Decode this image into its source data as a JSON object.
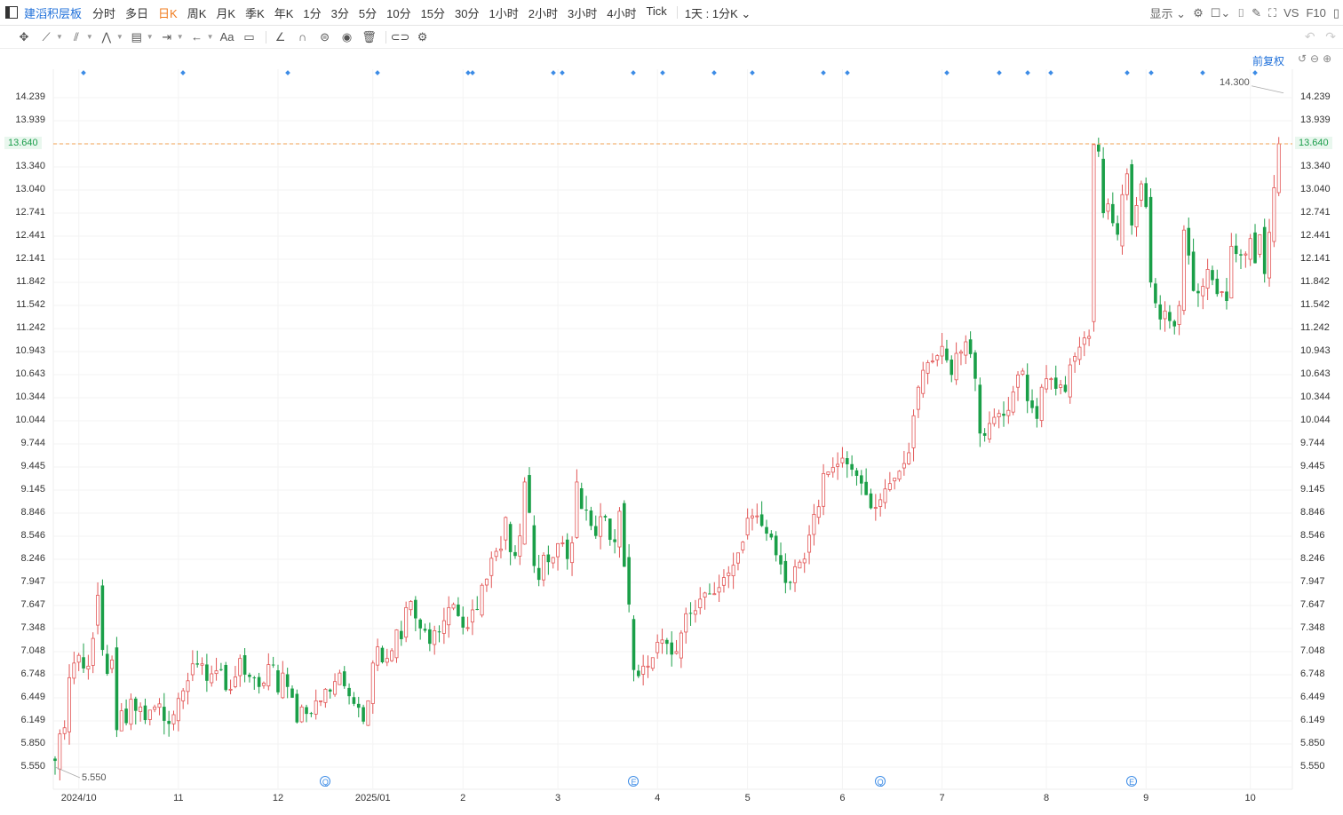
{
  "header": {
    "title": "建滔积层板",
    "periods": [
      "分时",
      "多日",
      "日K",
      "周K",
      "月K",
      "季K",
      "年K",
      "1分",
      "3分",
      "5分",
      "10分",
      "15分",
      "30分",
      "1小时",
      "2小时",
      "3小时",
      "4小时",
      "Tick"
    ],
    "active_period": "日K",
    "interval_label": "1天 : 1分K",
    "display_label": "显示",
    "vs_label": "VS",
    "f10_label": "F10"
  },
  "adjust_label": "前复权",
  "current_price_label": "13.640",
  "colors": {
    "up": "#e25555",
    "down": "#1a9f48",
    "current_line": "#f0a050",
    "marker": "#3d8ce6"
  },
  "chart_data": {
    "type": "candlestick",
    "y_ticks": [
      "14.239",
      "13.939",
      "13.640",
      "13.340",
      "13.040",
      "12.741",
      "12.441",
      "12.141",
      "11.842",
      "11.542",
      "11.242",
      "10.943",
      "10.643",
      "10.344",
      "10.044",
      "9.744",
      "9.445",
      "9.145",
      "8.846",
      "8.546",
      "8.246",
      "7.947",
      "7.647",
      "7.348",
      "7.048",
      "6.748",
      "6.449",
      "6.149",
      "5.850",
      "5.550"
    ],
    "ylim": [
      5.46,
      14.42
    ],
    "x_ticks": [
      {
        "label": "2024/10",
        "index": 5
      },
      {
        "label": "11",
        "index": 26
      },
      {
        "label": "12",
        "index": 47
      },
      {
        "label": "2025/01",
        "index": 67
      },
      {
        "label": "2",
        "index": 86
      },
      {
        "label": "3",
        "index": 106
      },
      {
        "label": "4",
        "index": 127
      },
      {
        "label": "5",
        "index": 146
      },
      {
        "label": "6",
        "index": 166
      },
      {
        "label": "7",
        "index": 187
      },
      {
        "label": "8",
        "index": 209
      },
      {
        "label": "9",
        "index": 230
      },
      {
        "label": "10",
        "index": 252
      }
    ],
    "current_price": 13.64,
    "annotations": [
      {
        "text": "5.550",
        "index": 0,
        "value": 5.55
      },
      {
        "text": "14.300",
        "index": 259,
        "value": 14.3
      }
    ],
    "event_markers": [
      {
        "text": "Q",
        "index": 57
      },
      {
        "text": "E",
        "index": 122
      },
      {
        "text": "Q",
        "index": 174
      },
      {
        "text": "E",
        "index": 227
      }
    ],
    "dividend_marker_indices": [
      6,
      27,
      49,
      68,
      87,
      88,
      105,
      107,
      122,
      128,
      139,
      147,
      162,
      167,
      188,
      199,
      205,
      210,
      226,
      231,
      242,
      253
    ],
    "closes": [
      5.63,
      5.98,
      6.06,
      6.71,
      6.9,
      7.0,
      6.83,
      6.86,
      7.22,
      7.78,
      7.07,
      6.76,
      6.94,
      6.03,
      6.28,
      6.12,
      6.43,
      6.28,
      6.33,
      6.16,
      6.29,
      6.33,
      6.37,
      6.15,
      6.11,
      6.23,
      6.44,
      6.54,
      6.67,
      6.89,
      6.88,
      6.89,
      6.67,
      6.76,
      6.8,
      6.82,
      6.55,
      6.56,
      6.72,
      6.96,
      6.75,
      6.72,
      6.71,
      6.59,
      6.64,
      6.88,
      6.87,
      6.52,
      6.77,
      6.59,
      6.45,
      6.13,
      6.33,
      6.24,
      6.24,
      6.41,
      6.41,
      6.56,
      6.53,
      6.66,
      6.77,
      6.6,
      6.47,
      6.37,
      6.32,
      6.14,
      6.41,
      6.9,
      7.11,
      6.91,
      6.96,
      7.06,
      7.33,
      7.21,
      7.62,
      7.7,
      7.48,
      7.35,
      7.32,
      7.15,
      7.32,
      7.31,
      7.45,
      7.62,
      7.66,
      7.51,
      7.36,
      7.36,
      7.59,
      7.6,
      7.91,
      7.99,
      8.26,
      8.35,
      8.38,
      8.79,
      8.34,
      8.29,
      8.55,
      9.25,
      8.85,
      8.16,
      7.98,
      8.3,
      8.21,
      8.27,
      8.45,
      8.46,
      8.25,
      8.46,
      9.25,
      8.9,
      8.88,
      8.68,
      8.55,
      8.8,
      8.79,
      8.5,
      8.47,
      8.87,
      8.15,
      7.66,
      6.81,
      6.73,
      6.86,
      6.86,
      6.97,
      7.17,
      7.2,
      7.15,
      7.01,
      7.05,
      7.29,
      7.54,
      7.55,
      7.58,
      7.73,
      7.81,
      7.8,
      7.8,
      7.88,
      8.01,
      8.07,
      8.17,
      8.33,
      8.47,
      8.78,
      8.81,
      8.81,
      8.68,
      8.58,
      8.53,
      8.3,
      8.18,
      7.94,
      7.94,
      8.15,
      8.21,
      8.25,
      8.56,
      8.83,
      8.93,
      9.36,
      9.38,
      9.44,
      9.48,
      9.56,
      9.48,
      9.41,
      9.33,
      9.23,
      9.08,
      8.91,
      8.92,
      9.02,
      9.16,
      9.23,
      9.3,
      9.39,
      9.49,
      9.63,
      10.11,
      10.48,
      10.7,
      10.8,
      10.82,
      10.89,
      11.01,
      10.83,
      10.64,
      10.92,
      10.94,
      11.07,
      10.91,
      10.59,
      9.88,
      9.85,
      10.01,
      10.09,
      10.14,
      10.11,
      10.18,
      10.42,
      10.64,
      10.69,
      10.3,
      10.21,
      10.07,
      10.48,
      10.59,
      10.59,
      10.46,
      10.51,
      10.42,
      10.77,
      10.88,
      11.0,
      11.12,
      11.14,
      13.63,
      13.54,
      12.74,
      12.86,
      12.61,
      12.46,
      12.98,
      13.25,
      12.58,
      12.84,
      13.12,
      12.82,
      11.84,
      11.57,
      11.36,
      11.47,
      11.34,
      11.27,
      11.54,
      12.52,
      12.19,
      11.73,
      11.7,
      11.79,
      12.01,
      11.87,
      11.69,
      11.72,
      11.6,
      12.31,
      12.21,
      12.19,
      12.21,
      12.41,
      12.09,
      12.46,
      11.95,
      12.49,
      13.07,
      13.64
    ]
  }
}
